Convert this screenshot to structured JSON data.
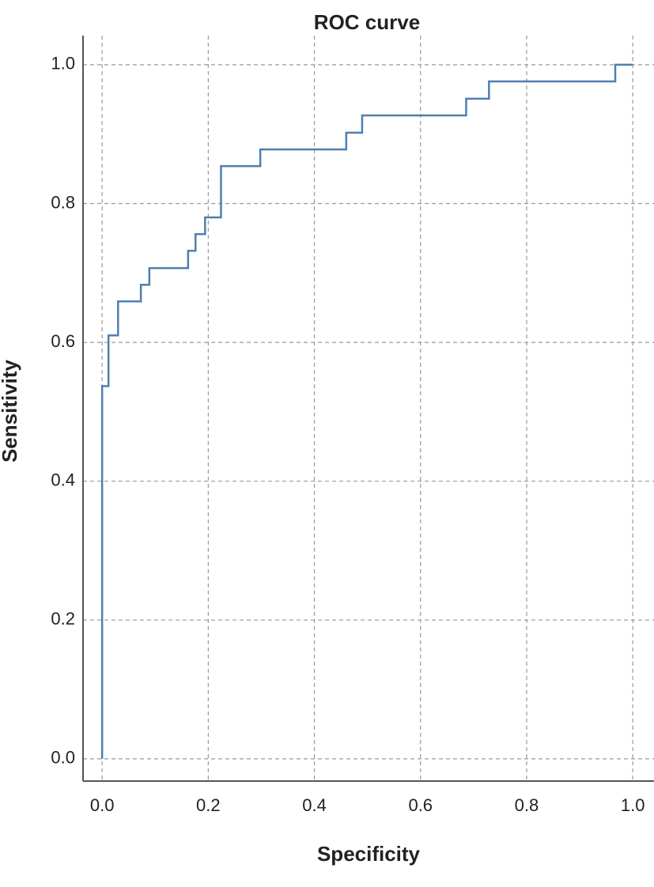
{
  "chart_data": {
    "type": "line",
    "title": "ROC curve",
    "x_label": "Specificity",
    "y_label": "Sensitivity",
    "color": "#4f7fae",
    "grid": true,
    "xlim": [
      -0.036,
      1.04
    ],
    "ylim": [
      -0.032,
      1.042
    ],
    "xticks": [
      {
        "value": 0,
        "label": "0.0"
      },
      0.2,
      0.4,
      0.6,
      0.8,
      {
        "value": 1,
        "label": "1.0"
      }
    ],
    "yticks": [
      {
        "value": 0,
        "label": "0.0"
      },
      0.2,
      0.4,
      0.6,
      0.8,
      {
        "value": 1,
        "label": "1.0"
      }
    ],
    "x": [
      0,
      0,
      0.012,
      0.012,
      0.03,
      0.03,
      0.073,
      0.073,
      0.089,
      0.089,
      0.162,
      0.162,
      0.176,
      0.176,
      0.194,
      0.194,
      0.224,
      0.224,
      0.298,
      0.298,
      0.46,
      0.46,
      0.49,
      0.49,
      0.686,
      0.686,
      0.729,
      0.729,
      0.967,
      0.967,
      1
    ],
    "y": [
      0,
      0.537,
      0.537,
      0.61,
      0.61,
      0.659,
      0.659,
      0.683,
      0.683,
      0.707,
      0.707,
      0.732,
      0.732,
      0.756,
      0.756,
      0.78,
      0.78,
      0.854,
      0.854,
      0.878,
      0.878,
      0.902,
      0.902,
      0.927,
      0.927,
      0.951,
      0.951,
      0.976,
      0.976,
      1,
      1
    ]
  }
}
